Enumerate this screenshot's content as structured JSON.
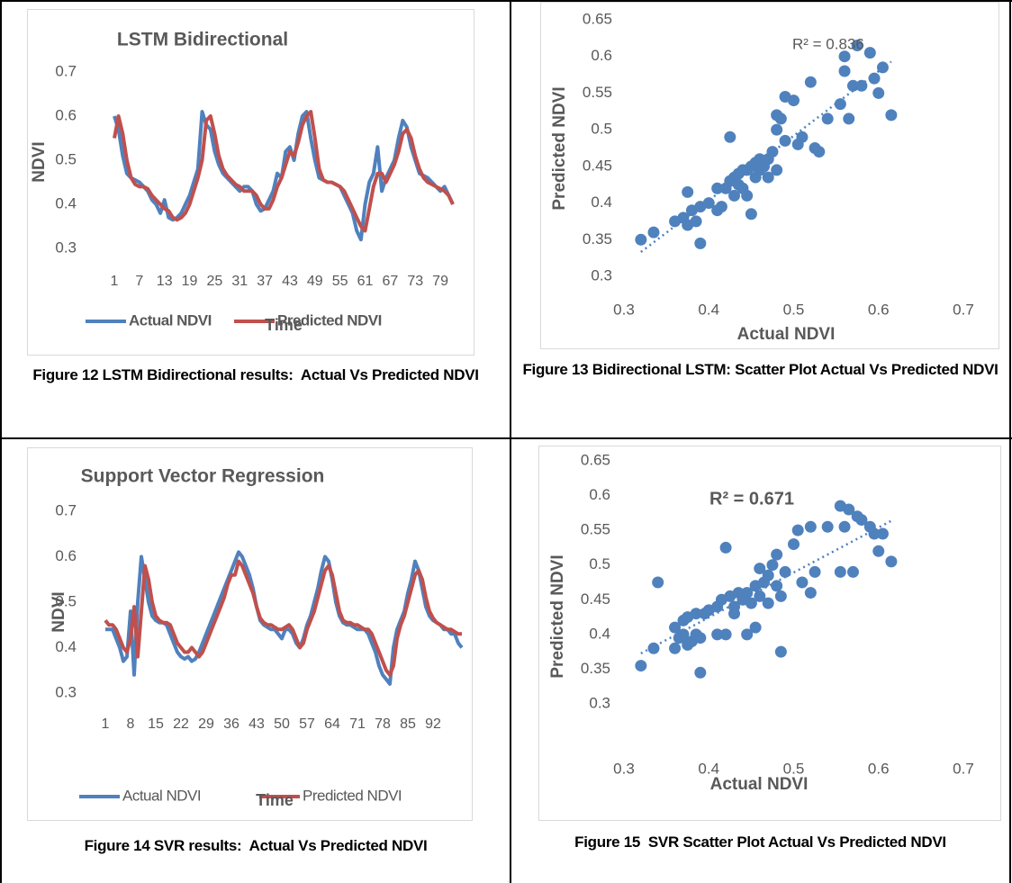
{
  "chart_data": [
    {
      "type": "line",
      "title": "LSTM Bidirectional",
      "xlabel": "Time",
      "ylabel": "NDVI",
      "caption": "Figure 12 LSTM Bidirectional results:  Actual Vs Predicted NDVI",
      "categories": [
        "1",
        null,
        null,
        null,
        null,
        null,
        "7",
        null,
        null,
        null,
        null,
        null,
        "13",
        null,
        null,
        null,
        null,
        null,
        "19",
        null,
        null,
        null,
        null,
        null,
        "25",
        null,
        null,
        null,
        null,
        null,
        "31",
        null,
        null,
        null,
        null,
        null,
        "37",
        null,
        null,
        null,
        null,
        null,
        "43",
        null,
        null,
        null,
        null,
        null,
        "49",
        null,
        null,
        null,
        null,
        null,
        "55",
        null,
        null,
        null,
        null,
        null,
        "61",
        null,
        null,
        null,
        null,
        null,
        "67",
        null,
        null,
        null,
        null,
        null,
        "73",
        null,
        null,
        null,
        null,
        null,
        "79",
        null,
        null,
        null
      ],
      "series": [
        {
          "name": "Actual NDVI",
          "color": "#4f81bd",
          "values": [
            0.6,
            0.57,
            0.51,
            0.47,
            0.46,
            0.455,
            0.45,
            0.44,
            0.43,
            0.41,
            0.4,
            0.38,
            0.41,
            0.37,
            0.365,
            0.37,
            0.38,
            0.4,
            0.42,
            0.45,
            0.48,
            0.61,
            0.58,
            0.57,
            0.52,
            0.49,
            0.47,
            0.46,
            0.45,
            0.44,
            0.43,
            0.44,
            0.44,
            0.43,
            0.4,
            0.385,
            0.39,
            0.41,
            0.43,
            0.47,
            0.46,
            0.52,
            0.53,
            0.5,
            0.56,
            0.6,
            0.61,
            0.55,
            0.5,
            0.46,
            0.455,
            0.45,
            0.45,
            0.445,
            0.44,
            0.42,
            0.4,
            0.38,
            0.34,
            0.32,
            0.4,
            0.45,
            0.47,
            0.53,
            0.43,
            0.46,
            0.48,
            0.5,
            0.55,
            0.59,
            0.575,
            0.53,
            0.5,
            0.47,
            0.465,
            0.46,
            0.45,
            0.44,
            0.43,
            0.44,
            0.42,
            0.4
          ]
        },
        {
          "name": "Predicted NDVI",
          "color": "#c0504d",
          "values": [
            0.55,
            0.6,
            0.56,
            0.5,
            0.46,
            0.445,
            0.44,
            0.44,
            0.435,
            0.42,
            0.41,
            0.4,
            0.39,
            0.385,
            0.37,
            0.365,
            0.37,
            0.38,
            0.4,
            0.43,
            0.46,
            0.5,
            0.59,
            0.6,
            0.56,
            0.51,
            0.48,
            0.465,
            0.455,
            0.445,
            0.44,
            0.43,
            0.43,
            0.43,
            0.42,
            0.4,
            0.39,
            0.39,
            0.41,
            0.44,
            0.46,
            0.49,
            0.52,
            0.51,
            0.54,
            0.58,
            0.6,
            0.61,
            0.55,
            0.48,
            0.455,
            0.45,
            0.45,
            0.445,
            0.44,
            0.43,
            0.41,
            0.39,
            0.37,
            0.35,
            0.34,
            0.39,
            0.44,
            0.47,
            0.47,
            0.45,
            0.47,
            0.49,
            0.52,
            0.56,
            0.57,
            0.55,
            0.51,
            0.48,
            0.46,
            0.45,
            0.445,
            0.44,
            0.435,
            0.43,
            0.42,
            0.4
          ]
        }
      ],
      "ylim": [
        0.3,
        0.7
      ],
      "yticks": [
        0.3,
        0.4,
        0.5,
        0.6,
        0.7
      ],
      "grid": false
    },
    {
      "type": "scatter",
      "annotation": "R² = 0.836",
      "xlabel": "Actual NDVI",
      "ylabel": "Predicted NDVI",
      "caption": "Figure 13 Bidirectional LSTM: Scatter Plot Actual Vs Predicted NDVI",
      "color": "#4f81bd",
      "x": [
        0.32,
        0.335,
        0.36,
        0.37,
        0.375,
        0.375,
        0.38,
        0.385,
        0.39,
        0.39,
        0.4,
        0.41,
        0.41,
        0.415,
        0.42,
        0.425,
        0.425,
        0.43,
        0.43,
        0.435,
        0.435,
        0.44,
        0.44,
        0.445,
        0.445,
        0.45,
        0.45,
        0.455,
        0.455,
        0.46,
        0.46,
        0.465,
        0.47,
        0.47,
        0.475,
        0.48,
        0.48,
        0.48,
        0.485,
        0.49,
        0.49,
        0.5,
        0.505,
        0.51,
        0.52,
        0.525,
        0.53,
        0.54,
        0.555,
        0.56,
        0.56,
        0.565,
        0.57,
        0.575,
        0.58,
        0.59,
        0.595,
        0.6,
        0.605,
        0.615
      ],
      "values": [
        0.35,
        0.36,
        0.375,
        0.38,
        0.415,
        0.37,
        0.39,
        0.375,
        0.345,
        0.395,
        0.4,
        0.42,
        0.39,
        0.395,
        0.42,
        0.49,
        0.43,
        0.41,
        0.435,
        0.44,
        0.425,
        0.445,
        0.42,
        0.41,
        0.445,
        0.45,
        0.385,
        0.455,
        0.435,
        0.445,
        0.46,
        0.45,
        0.46,
        0.435,
        0.47,
        0.52,
        0.5,
        0.445,
        0.515,
        0.545,
        0.485,
        0.54,
        0.48,
        0.49,
        0.565,
        0.475,
        0.47,
        0.515,
        0.535,
        0.58,
        0.6,
        0.515,
        0.56,
        0.615,
        0.56,
        0.605,
        0.57,
        0.55,
        0.585,
        0.52
      ],
      "xlim": [
        0.3,
        0.7
      ],
      "xticks": [
        0.3,
        0.4,
        0.5,
        0.6,
        0.7
      ],
      "ylim": [
        0.3,
        0.65
      ],
      "yticks": [
        0.3,
        0.35,
        0.4,
        0.45,
        0.5,
        0.55,
        0.6,
        0.65
      ],
      "grid": false
    },
    {
      "type": "line",
      "title": "Support Vector Regression",
      "xlabel": "Time",
      "ylabel": "NDVI",
      "caption": "Figure 14 SVR results:  Actual Vs Predicted NDVI",
      "categories": [
        "1",
        null,
        null,
        null,
        null,
        null,
        null,
        "8",
        null,
        null,
        null,
        null,
        null,
        null,
        "15",
        null,
        null,
        null,
        null,
        null,
        null,
        "22",
        null,
        null,
        null,
        null,
        null,
        null,
        "29",
        null,
        null,
        null,
        null,
        null,
        null,
        "36",
        null,
        null,
        null,
        null,
        null,
        null,
        "43",
        null,
        null,
        null,
        null,
        null,
        null,
        "50",
        null,
        null,
        null,
        null,
        null,
        null,
        "57",
        null,
        null,
        null,
        null,
        null,
        null,
        "64",
        null,
        null,
        null,
        null,
        null,
        null,
        "71",
        null,
        null,
        null,
        null,
        null,
        null,
        "78",
        null,
        null,
        null,
        null,
        null,
        null,
        "85",
        null,
        null,
        null,
        null,
        null,
        null,
        "92",
        null,
        null,
        null,
        null,
        null,
        null,
        null,
        null
      ],
      "series": [
        {
          "name": "Actual NDVI",
          "color": "#4f81bd",
          "values": [
            0.44,
            0.44,
            0.44,
            0.42,
            0.4,
            0.37,
            0.38,
            0.48,
            0.34,
            0.5,
            0.6,
            0.55,
            0.5,
            0.47,
            0.46,
            0.455,
            0.455,
            0.45,
            0.43,
            0.41,
            0.39,
            0.38,
            0.375,
            0.38,
            0.37,
            0.375,
            0.39,
            0.41,
            0.43,
            0.45,
            0.47,
            0.49,
            0.51,
            0.53,
            0.55,
            0.57,
            0.59,
            0.61,
            0.6,
            0.58,
            0.56,
            0.53,
            0.49,
            0.46,
            0.45,
            0.445,
            0.44,
            0.44,
            0.43,
            0.42,
            0.44,
            0.44,
            0.43,
            0.41,
            0.4,
            0.42,
            0.45,
            0.47,
            0.5,
            0.53,
            0.57,
            0.6,
            0.59,
            0.55,
            0.5,
            0.47,
            0.455,
            0.45,
            0.45,
            0.445,
            0.44,
            0.44,
            0.44,
            0.43,
            0.41,
            0.39,
            0.36,
            0.34,
            0.33,
            0.32,
            0.4,
            0.44,
            0.46,
            0.48,
            0.52,
            0.55,
            0.59,
            0.57,
            0.53,
            0.49,
            0.47,
            0.46,
            0.455,
            0.45,
            0.44,
            0.44,
            0.43,
            0.43,
            0.41,
            0.4
          ]
        },
        {
          "name": "Predicted NDVI",
          "color": "#c0504d",
          "values": [
            0.46,
            0.45,
            0.45,
            0.44,
            0.42,
            0.4,
            0.39,
            0.42,
            0.49,
            0.38,
            0.48,
            0.58,
            0.55,
            0.5,
            0.47,
            0.46,
            0.455,
            0.455,
            0.45,
            0.43,
            0.41,
            0.4,
            0.39,
            0.39,
            0.4,
            0.39,
            0.38,
            0.39,
            0.41,
            0.43,
            0.45,
            0.47,
            0.49,
            0.51,
            0.54,
            0.56,
            0.56,
            0.59,
            0.58,
            0.56,
            0.54,
            0.52,
            0.49,
            0.465,
            0.455,
            0.45,
            0.45,
            0.445,
            0.44,
            0.44,
            0.445,
            0.45,
            0.44,
            0.42,
            0.4,
            0.41,
            0.44,
            0.46,
            0.48,
            0.51,
            0.54,
            0.57,
            0.58,
            0.56,
            0.52,
            0.48,
            0.46,
            0.455,
            0.455,
            0.45,
            0.45,
            0.445,
            0.44,
            0.44,
            0.43,
            0.41,
            0.39,
            0.37,
            0.35,
            0.34,
            0.36,
            0.42,
            0.45,
            0.47,
            0.5,
            0.53,
            0.56,
            0.57,
            0.55,
            0.51,
            0.48,
            0.465,
            0.455,
            0.45,
            0.445,
            0.44,
            0.44,
            0.435,
            0.43,
            0.43
          ]
        }
      ],
      "ylim": [
        0.3,
        0.7
      ],
      "yticks": [
        0.3,
        0.4,
        0.5,
        0.6,
        0.7
      ],
      "grid": false
    },
    {
      "type": "scatter",
      "annotation": "R² = 0.671",
      "xlabel": "Actual NDVI",
      "ylabel": "Predicted NDVI",
      "caption": "Figure 15  SVR Scatter Plot Actual Vs Predicted NDVI",
      "color": "#4f81bd",
      "x": [
        0.32,
        0.335,
        0.34,
        0.36,
        0.36,
        0.365,
        0.37,
        0.37,
        0.375,
        0.375,
        0.38,
        0.385,
        0.385,
        0.39,
        0.39,
        0.395,
        0.4,
        0.41,
        0.41,
        0.415,
        0.42,
        0.42,
        0.425,
        0.43,
        0.43,
        0.435,
        0.44,
        0.445,
        0.445,
        0.45,
        0.455,
        0.455,
        0.46,
        0.46,
        0.465,
        0.47,
        0.47,
        0.475,
        0.48,
        0.48,
        0.485,
        0.485,
        0.49,
        0.5,
        0.505,
        0.51,
        0.52,
        0.52,
        0.525,
        0.54,
        0.555,
        0.555,
        0.56,
        0.565,
        0.57,
        0.575,
        0.58,
        0.59,
        0.595,
        0.6,
        0.605,
        0.615
      ],
      "values": [
        0.355,
        0.38,
        0.475,
        0.41,
        0.38,
        0.395,
        0.42,
        0.4,
        0.425,
        0.385,
        0.39,
        0.43,
        0.4,
        0.345,
        0.395,
        0.43,
        0.435,
        0.44,
        0.4,
        0.45,
        0.525,
        0.4,
        0.455,
        0.44,
        0.43,
        0.46,
        0.45,
        0.46,
        0.4,
        0.445,
        0.47,
        0.41,
        0.495,
        0.455,
        0.475,
        0.485,
        0.445,
        0.5,
        0.515,
        0.47,
        0.375,
        0.455,
        0.49,
        0.53,
        0.55,
        0.475,
        0.555,
        0.46,
        0.49,
        0.555,
        0.585,
        0.49,
        0.555,
        0.58,
        0.49,
        0.57,
        0.565,
        0.555,
        0.545,
        0.52,
        0.545,
        0.505
      ],
      "xlim": [
        0.3,
        0.7
      ],
      "xticks": [
        0.3,
        0.4,
        0.5,
        0.6,
        0.7
      ],
      "ylim": [
        0.3,
        0.65
      ],
      "yticks": [
        0.3,
        0.35,
        0.4,
        0.45,
        0.5,
        0.55,
        0.6,
        0.65
      ],
      "grid": false
    }
  ]
}
